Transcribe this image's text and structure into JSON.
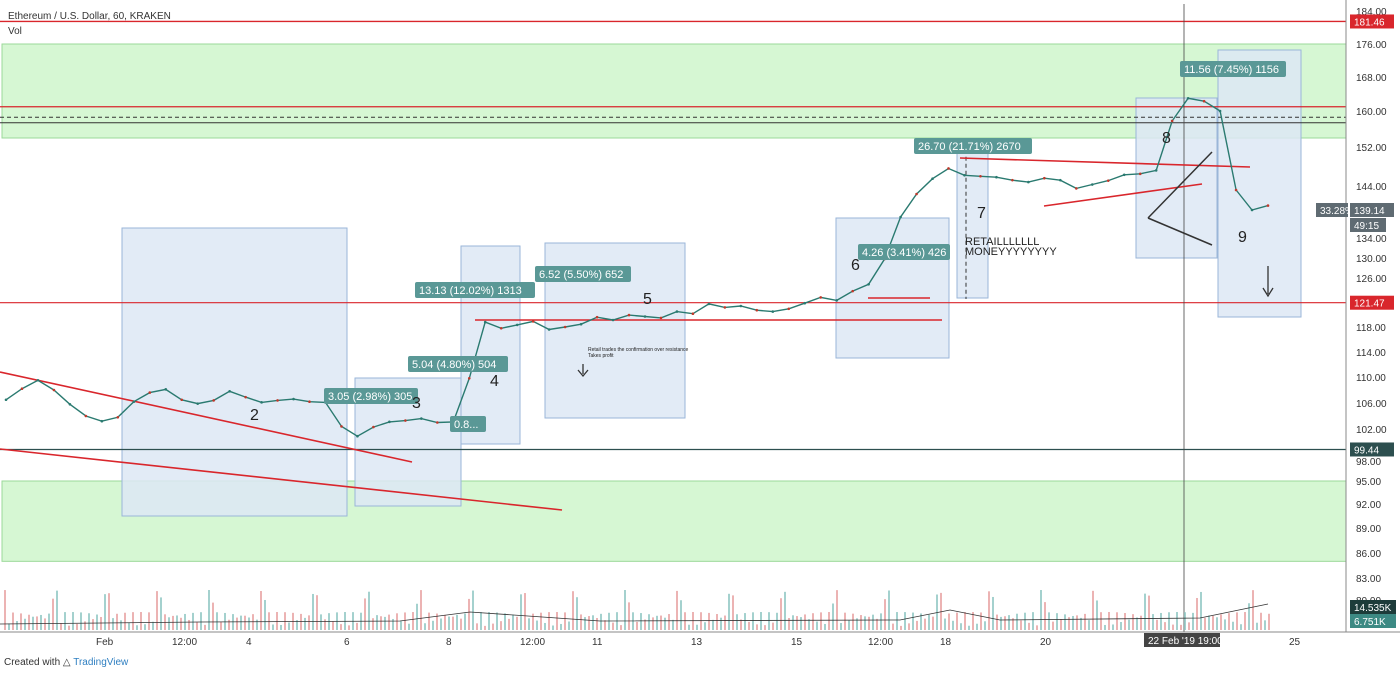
{
  "header": {
    "title": "Ethereum / U.S. Dollar, 60, KRAKEN",
    "volume_label": "Vol"
  },
  "footer": {
    "created_with": "Created with",
    "brand": "TradingView"
  },
  "colors": {
    "zone": "#d6f7d3",
    "box": "#dde8f4",
    "trend": "#d9262c",
    "label": "#5a9896",
    "axis_badge": "#5f6b72"
  },
  "chart_data": {
    "type": "line",
    "title": "Ethereum / U.S. Dollar, 60, KRAKEN",
    "y_ticks": [
      184,
      176,
      168,
      160,
      152,
      144,
      138,
      134,
      130,
      126,
      122,
      118,
      114,
      110,
      106,
      102,
      98,
      95,
      92,
      89,
      86,
      83,
      80
    ],
    "x_ticks": [
      "Feb",
      "12:00",
      "4",
      "6",
      "8",
      "12:00",
      "11",
      "13",
      "15",
      "12:00",
      "18",
      "20",
      "22 Feb '19  19:00",
      "25"
    ],
    "series": [
      {
        "values": [
          106.5,
          108.2,
          109.5,
          108,
          105.8,
          104,
          103.2,
          103.8,
          106.2,
          107.6,
          108.1,
          106.5,
          105.9,
          106.4,
          107.8,
          106.9,
          106.1,
          106.4,
          106.6,
          106.2,
          106.1,
          102.4,
          101.1,
          102.3,
          103.1,
          103.3,
          103.6,
          103.0,
          103.1,
          109.8,
          118.7,
          117.8,
          118.3,
          118.8,
          117.6,
          118.0,
          118.4,
          119.4,
          119.0,
          119.7,
          119.5,
          119.3,
          120.2,
          119.9,
          121.3,
          120.8,
          121.0,
          120.4,
          120.2,
          120.6,
          121.4,
          122.3,
          121.8,
          123.5,
          124.8,
          129.8,
          137.0,
          142.0,
          145.5,
          147.6,
          146.2,
          146.0,
          145.8,
          145.2,
          144.8,
          145.6,
          145.2,
          143.4,
          144.3,
          145.1,
          146.3,
          146.5,
          147.2,
          157.8,
          163.0,
          162.3,
          160.0,
          143.0,
          138.0,
          139.1
        ]
      }
    ],
    "volume": {
      "labels": [
        "14.535K",
        "6.751K"
      ]
    },
    "price_badges": [
      "181.46",
      "121.47",
      "99.44",
      "33.28%",
      "139.14",
      "49:15"
    ],
    "levels": [
      "181.46",
      "161",
      "158.6",
      "157.4",
      "121.47",
      "99.44"
    ],
    "measure_labels": [
      "3.05 (2.98%) 305",
      "5.04 (4.80%) 504",
      "13.13 (12.02%) 1313",
      "6.52 (5.50%) 652",
      "4.26 (3.41%) 426",
      "26.70 (21.71%) 2670",
      "11.56 (7.45%) 1156",
      "0.8..."
    ],
    "annotations": [
      "2",
      "3",
      "4",
      "5",
      "6",
      "7",
      "8",
      "9",
      "RETAILLLLLLL",
      "MONEYYYYYYYY",
      "Retail trades the confirmation over resistance",
      "Takes profit"
    ]
  }
}
